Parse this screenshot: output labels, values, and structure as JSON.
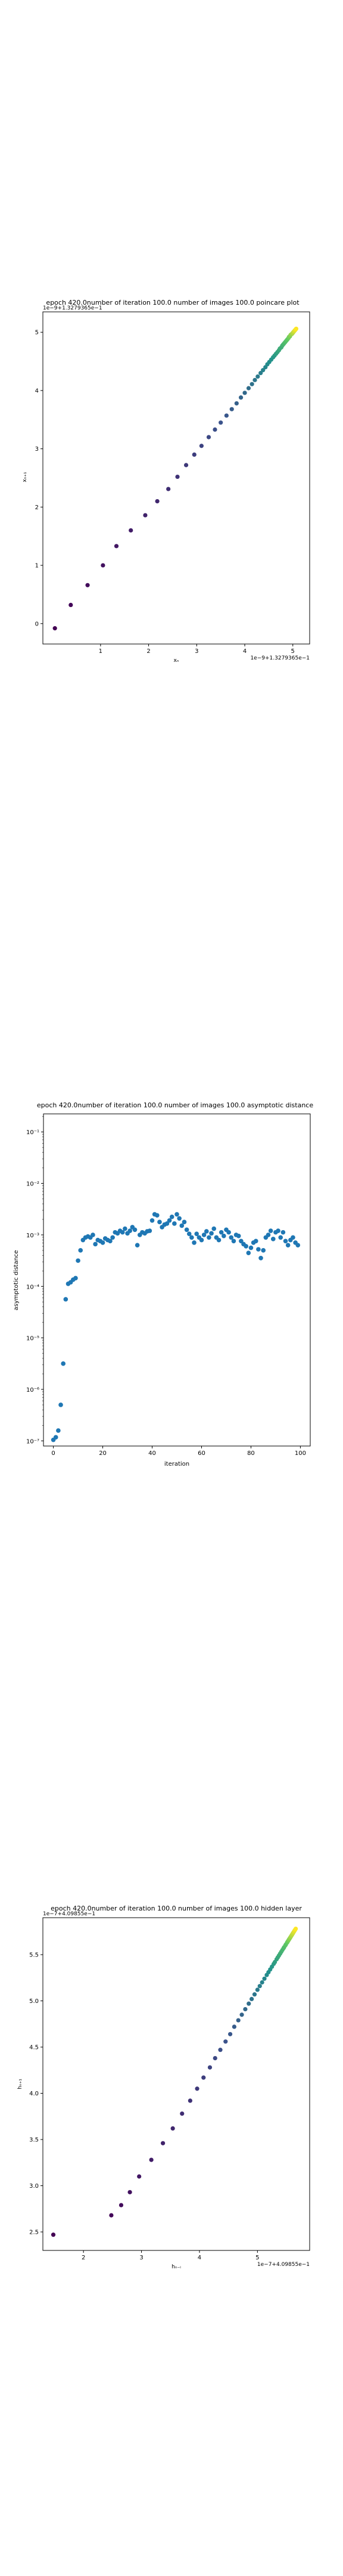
{
  "chart_data": [
    {
      "type": "scatter",
      "title": "epoch 420.0number of iteration 100.0 number of images 100.0 poincare plot",
      "xlabel": "xₙ",
      "ylabel": "xₙ₊₁",
      "x_offset_text": "1e−9+1.3279365e−1",
      "y_offset_text": "1e−9+1.3279365e−1",
      "xlim": [
        -0.2,
        5.35
      ],
      "ylim": [
        -0.35,
        5.35
      ],
      "xticks": [
        "1",
        "2",
        "3",
        "4",
        "5"
      ],
      "yticks": [
        "0",
        "1",
        "2",
        "3",
        "4",
        "5"
      ],
      "colormap": [
        "#440154",
        "#3b528b",
        "#21918c",
        "#5ec962",
        "#fde725"
      ],
      "points": [
        [
          0.05,
          -0.08
        ],
        [
          0.38,
          0.32
        ],
        [
          0.73,
          0.66
        ],
        [
          1.05,
          1.0
        ],
        [
          1.33,
          1.33
        ],
        [
          1.63,
          1.6
        ],
        [
          1.93,
          1.86
        ],
        [
          2.18,
          2.1
        ],
        [
          2.41,
          2.31
        ],
        [
          2.6,
          2.52
        ],
        [
          2.78,
          2.72
        ],
        [
          2.95,
          2.9
        ],
        [
          3.1,
          3.05
        ],
        [
          3.25,
          3.2
        ],
        [
          3.38,
          3.33
        ],
        [
          3.5,
          3.45
        ],
        [
          3.62,
          3.57
        ],
        [
          3.73,
          3.68
        ],
        [
          3.83,
          3.78
        ],
        [
          3.92,
          3.88
        ],
        [
          4.0,
          3.96
        ],
        [
          4.08,
          4.04
        ],
        [
          4.15,
          4.11
        ],
        [
          4.21,
          4.18
        ],
        [
          4.27,
          4.24
        ],
        [
          4.33,
          4.3
        ],
        [
          4.38,
          4.35
        ],
        [
          4.43,
          4.4
        ],
        [
          4.47,
          4.45
        ],
        [
          4.51,
          4.49
        ],
        [
          4.55,
          4.53
        ],
        [
          4.59,
          4.57
        ],
        [
          4.62,
          4.6
        ],
        [
          4.65,
          4.63
        ],
        [
          4.68,
          4.66
        ],
        [
          4.71,
          4.69
        ],
        [
          4.73,
          4.72
        ],
        [
          4.76,
          4.74
        ],
        [
          4.78,
          4.77
        ],
        [
          4.8,
          4.79
        ],
        [
          4.82,
          4.81
        ],
        [
          4.84,
          4.83
        ],
        [
          4.86,
          4.85
        ],
        [
          4.88,
          4.87
        ],
        [
          4.89,
          4.88
        ],
        [
          4.91,
          4.9
        ],
        [
          4.92,
          4.92
        ],
        [
          4.94,
          4.93
        ],
        [
          4.95,
          4.95
        ],
        [
          4.96,
          4.96
        ],
        [
          4.98,
          4.97
        ],
        [
          4.99,
          4.98
        ],
        [
          5.0,
          4.99
        ],
        [
          5.01,
          5.0
        ],
        [
          5.02,
          5.01
        ],
        [
          5.03,
          5.02
        ],
        [
          5.04,
          5.03
        ],
        [
          5.05,
          5.04
        ],
        [
          5.06,
          5.05
        ],
        [
          5.07,
          5.06
        ]
      ]
    },
    {
      "type": "scatter",
      "title": "epoch 420.0number of iteration 100.0  number of images 100.0 asymptotic distance",
      "xlabel": "iteration",
      "ylabel": "asymptotic distance",
      "yscale": "log",
      "xlim": [
        -4,
        104
      ],
      "ylim_exp": [
        -7.1,
        -0.65
      ],
      "xticks": [
        0,
        20,
        40,
        60,
        80,
        100
      ],
      "yticks": [
        "10⁻⁷",
        "10⁻⁶",
        "10⁻⁵",
        "10⁻⁴",
        "10⁻³",
        "10⁻²",
        "10⁻¹"
      ],
      "ytick_exp": [
        -7,
        -6,
        -5,
        -4,
        -3,
        -2,
        -1
      ],
      "marker_color": "#1f77b4",
      "x": [
        0,
        1,
        2,
        3,
        4,
        5,
        6,
        7,
        8,
        9,
        10,
        11,
        12,
        13,
        14,
        15,
        16,
        17,
        18,
        19,
        20,
        21,
        22,
        23,
        24,
        25,
        26,
        27,
        28,
        29,
        30,
        31,
        32,
        33,
        34,
        35,
        36,
        37,
        38,
        39,
        40,
        41,
        42,
        43,
        44,
        45,
        46,
        47,
        48,
        49,
        50,
        51,
        52,
        53,
        54,
        55,
        56,
        57,
        58,
        59,
        60,
        61,
        62,
        63,
        64,
        65,
        66,
        67,
        68,
        69,
        70,
        71,
        72,
        73,
        74,
        75,
        76,
        77,
        78,
        79,
        80,
        81,
        82,
        83,
        84,
        85,
        86,
        87,
        88,
        89,
        90,
        91,
        92,
        93,
        94,
        95,
        96,
        97,
        98,
        99
      ],
      "log10_y": [
        -6.98,
        -6.93,
        -6.8,
        -6.3,
        -5.5,
        -4.25,
        -3.95,
        -3.92,
        -3.87,
        -3.84,
        -3.5,
        -3.3,
        -3.1,
        -3.05,
        -3.03,
        -3.05,
        -3.0,
        -3.18,
        -3.1,
        -3.12,
        -3.15,
        -3.07,
        -3.1,
        -3.12,
        -3.05,
        -2.95,
        -2.97,
        -2.92,
        -2.95,
        -2.88,
        -2.97,
        -2.92,
        -2.85,
        -2.9,
        -3.2,
        -3.0,
        -2.95,
        -2.97,
        -2.93,
        -2.92,
        -2.72,
        -2.6,
        -2.62,
        -2.75,
        -2.85,
        -2.8,
        -2.78,
        -2.72,
        -2.65,
        -2.78,
        -2.6,
        -2.68,
        -2.82,
        -2.75,
        -2.9,
        -2.98,
        -3.05,
        -3.15,
        -2.98,
        -3.05,
        -3.1,
        -3.0,
        -2.93,
        -3.05,
        -2.97,
        -2.88,
        -3.05,
        -3.1,
        -2.95,
        -3.02,
        -2.9,
        -2.95,
        -3.05,
        -3.12,
        -3.0,
        -3.02,
        -3.12,
        -3.18,
        -3.22,
        -3.35,
        -3.25,
        -3.15,
        -3.12,
        -3.28,
        -3.45,
        -3.3,
        -3.05,
        -3.0,
        -2.92,
        -3.08,
        -2.95,
        -2.92,
        -3.05,
        -2.95,
        -3.12,
        -3.2,
        -3.1,
        -3.05,
        -3.15,
        -3.2
      ]
    },
    {
      "type": "scatter",
      "title": "epoch 420.0number of iteration 100.0  number of images 100.0 hidden layer",
      "xlabel": "hₙ₋ᵢ",
      "ylabel": "hₙ₊₁",
      "x_offset_text": "1e−7+4.09855e−1",
      "y_offset_text": "1e−7+4.09855e−1",
      "xlim": [
        1.3,
        5.9
      ],
      "ylim": [
        2.3,
        5.9
      ],
      "xticks": [
        "2",
        "3",
        "4",
        "5"
      ],
      "yticks": [
        "2.5",
        "3.0",
        "3.5",
        "4.0",
        "4.5",
        "5.0",
        "5.5"
      ],
      "colormap": [
        "#440154",
        "#3b528b",
        "#21918c",
        "#5ec962",
        "#fde725"
      ],
      "points": [
        [
          1.48,
          2.47
        ],
        [
          2.48,
          2.68
        ],
        [
          2.65,
          2.79
        ],
        [
          2.8,
          2.93
        ],
        [
          2.96,
          3.1
        ],
        [
          3.17,
          3.28
        ],
        [
          3.37,
          3.46
        ],
        [
          3.54,
          3.62
        ],
        [
          3.7,
          3.78
        ],
        [
          3.84,
          3.92
        ],
        [
          3.96,
          4.05
        ],
        [
          4.07,
          4.17
        ],
        [
          4.18,
          4.28
        ],
        [
          4.27,
          4.38
        ],
        [
          4.36,
          4.47
        ],
        [
          4.45,
          4.56
        ],
        [
          4.53,
          4.64
        ],
        [
          4.6,
          4.72
        ],
        [
          4.67,
          4.79
        ],
        [
          4.73,
          4.85
        ],
        [
          4.79,
          4.91
        ],
        [
          4.85,
          4.97
        ],
        [
          4.9,
          5.02
        ],
        [
          4.95,
          5.07
        ],
        [
          5.0,
          5.12
        ],
        [
          5.04,
          5.16
        ],
        [
          5.08,
          5.2
        ],
        [
          5.12,
          5.24
        ],
        [
          5.16,
          5.28
        ],
        [
          5.19,
          5.31
        ],
        [
          5.22,
          5.34
        ],
        [
          5.25,
          5.37
        ],
        [
          5.28,
          5.4
        ],
        [
          5.3,
          5.42
        ],
        [
          5.33,
          5.45
        ],
        [
          5.35,
          5.47
        ],
        [
          5.37,
          5.49
        ],
        [
          5.39,
          5.51
        ],
        [
          5.41,
          5.53
        ],
        [
          5.43,
          5.55
        ],
        [
          5.45,
          5.57
        ],
        [
          5.46,
          5.58
        ],
        [
          5.48,
          5.6
        ],
        [
          5.49,
          5.61
        ],
        [
          5.51,
          5.63
        ],
        [
          5.52,
          5.64
        ],
        [
          5.53,
          5.65
        ],
        [
          5.54,
          5.66
        ],
        [
          5.55,
          5.67
        ],
        [
          5.56,
          5.68
        ],
        [
          5.57,
          5.69
        ],
        [
          5.58,
          5.7
        ],
        [
          5.59,
          5.71
        ],
        [
          5.6,
          5.72
        ],
        [
          5.61,
          5.73
        ],
        [
          5.62,
          5.74
        ],
        [
          5.63,
          5.75
        ],
        [
          5.64,
          5.76
        ],
        [
          5.65,
          5.77
        ],
        [
          5.66,
          5.78
        ]
      ]
    }
  ]
}
